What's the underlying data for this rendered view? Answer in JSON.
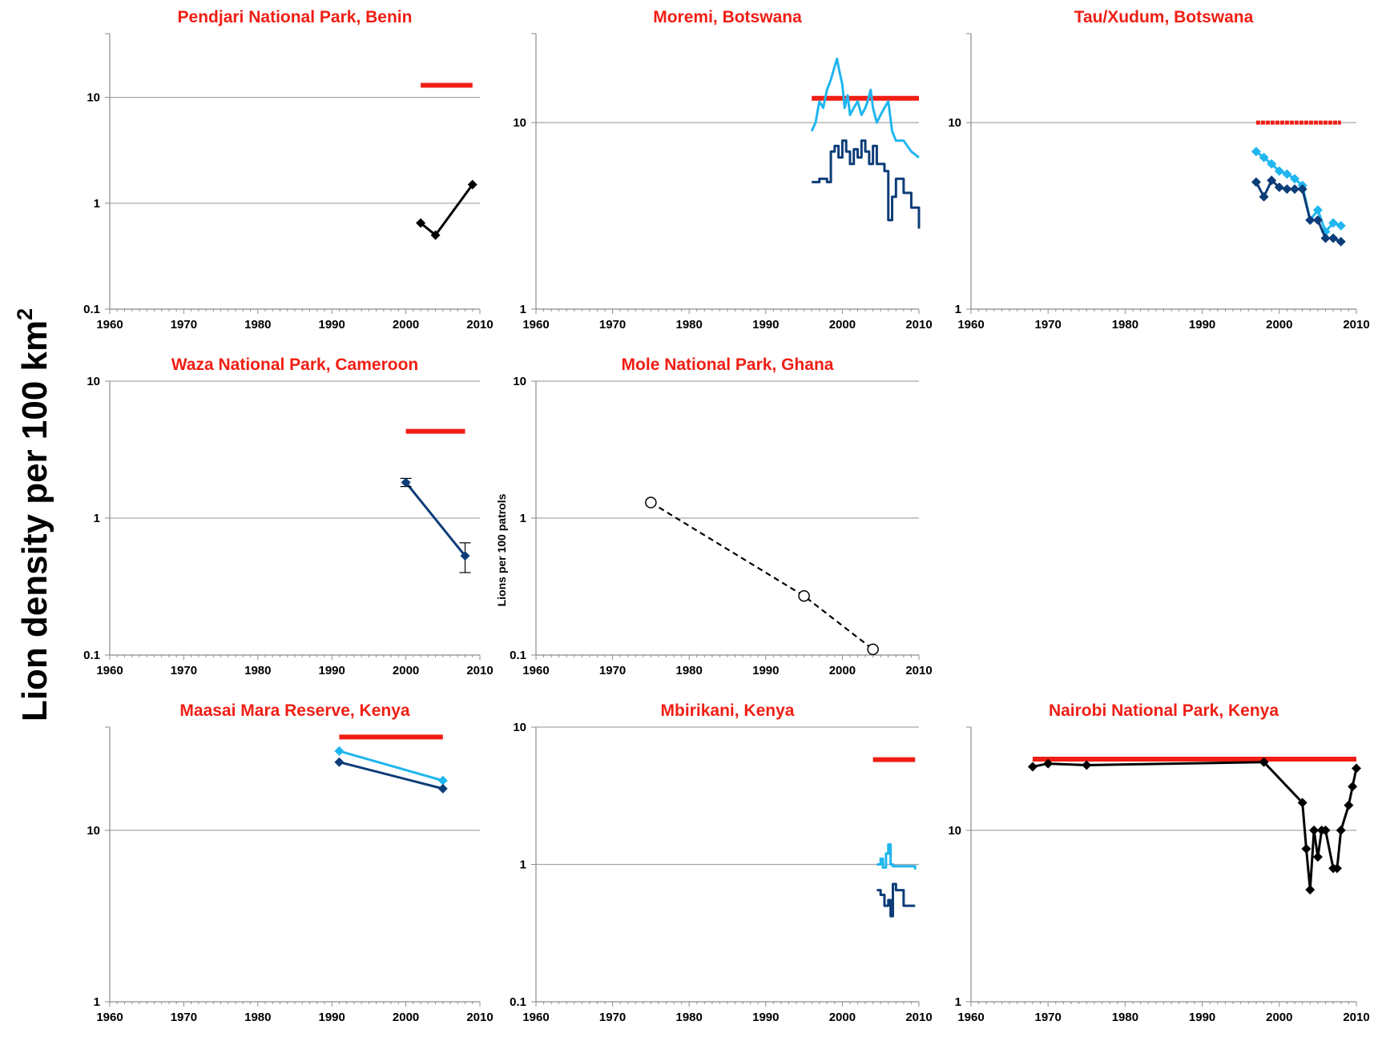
{
  "figure": {
    "ylabel": "Lion density per 100 km",
    "ylabel_superscript": "2"
  },
  "colors": {
    "title": "#f01e14",
    "reference": "#f01e14",
    "light_series": "#1fb6ef",
    "dark_series": "#0d3d78",
    "black_series": "#000000",
    "gridline": "#a6a6a6",
    "axis": "#8c8c8c"
  },
  "chart_data": [
    {
      "id": "pendjari",
      "type": "line",
      "title": "Pendjari National Park, Benin",
      "yscale": "log",
      "xlim": [
        1960,
        2010
      ],
      "ylim": [
        0.1,
        40
      ],
      "xticks": [
        1960,
        1970,
        1980,
        1990,
        2000,
        2010
      ],
      "yticks": [
        0.1,
        1,
        10
      ],
      "ytick_labels": [
        "0.1",
        "1",
        "10"
      ],
      "grid": "horizontal",
      "legend": "none",
      "series": [
        {
          "color": "reference",
          "style": "thick",
          "x": [
            2002,
            2009
          ],
          "y": [
            13,
            13
          ]
        },
        {
          "color": "black_series",
          "style": "line-diamond",
          "x": [
            2002,
            2004,
            2009
          ],
          "y": [
            0.65,
            0.5,
            1.5
          ]
        }
      ]
    },
    {
      "id": "moremi",
      "type": "line",
      "title": "Moremi, Botswana",
      "yscale": "log",
      "xlim": [
        1960,
        2010
      ],
      "ylim": [
        1,
        30
      ],
      "xticks": [
        1960,
        1970,
        1980,
        1990,
        2000,
        2010
      ],
      "yticks": [
        1,
        10
      ],
      "ytick_labels": [
        "1",
        "10"
      ],
      "grid": "horizontal",
      "legend": "none",
      "series": [
        {
          "color": "reference",
          "style": "thick",
          "x": [
            1996,
            2010
          ],
          "y": [
            13.5,
            13.5
          ]
        },
        {
          "color": "light_series",
          "style": "line",
          "x": [
            1996,
            1996.5,
            1997,
            1997.5,
            1998,
            1998.5,
            1999,
            1999.3,
            1999.6,
            2000,
            2000.3,
            2000.7,
            2001,
            2001.5,
            2002,
            2002.5,
            2003,
            2003.3,
            2003.7,
            2004,
            2004.5,
            2005,
            2005.5,
            2006,
            2006.5,
            2007,
            2008,
            2009,
            2010
          ],
          "y": [
            9,
            10,
            13,
            12,
            15,
            17,
            20,
            22,
            19,
            16,
            12,
            14,
            11,
            12,
            13,
            11,
            12,
            13,
            15,
            12,
            10,
            11,
            12,
            13,
            9,
            8,
            8,
            7,
            6.5
          ]
        },
        {
          "color": "dark_series",
          "style": "step",
          "x": [
            1996,
            1997,
            1998,
            1998.5,
            1999,
            1999.5,
            2000,
            2000.5,
            2001,
            2001.5,
            2002,
            2002.5,
            2003,
            2003.5,
            2004,
            2004.5,
            2005,
            2005.5,
            2006,
            2006.5,
            2007,
            2008,
            2009,
            2010
          ],
          "y": [
            4.8,
            5,
            4.8,
            7,
            7.5,
            6.5,
            8,
            7,
            6,
            7.2,
            6.5,
            8,
            7,
            6,
            7.5,
            6,
            6,
            5.5,
            3,
            4,
            5,
            4.2,
            3.5,
            2.7
          ]
        }
      ]
    },
    {
      "id": "tau",
      "type": "line",
      "title": "Tau/Xudum, Botswana",
      "yscale": "log",
      "xlim": [
        1960,
        2010
      ],
      "ylim": [
        1,
        30
      ],
      "xticks": [
        1960,
        1970,
        1980,
        1990,
        2000,
        2010
      ],
      "yticks": [
        1,
        10
      ],
      "ytick_labels": [
        "1",
        "10"
      ],
      "grid": "horizontal",
      "legend": "none",
      "series": [
        {
          "color": "reference",
          "style": "dotted-thick",
          "x": [
            1997,
            2008
          ],
          "y": [
            10,
            10
          ]
        },
        {
          "color": "light_series",
          "style": "line-diamond",
          "x": [
            1997,
            1998,
            1999,
            2000,
            2001,
            2002,
            2003,
            2004,
            2005,
            2006,
            2007,
            2008
          ],
          "y": [
            7,
            6.5,
            6,
            5.5,
            5.3,
            5,
            4.6,
            3,
            3.4,
            2.6,
            2.9,
            2.8
          ]
        },
        {
          "color": "dark_series",
          "style": "line-diamond",
          "x": [
            1997,
            1998,
            1999,
            2000,
            2001,
            2002,
            2003,
            2004,
            2005,
            2006,
            2007,
            2008
          ],
          "y": [
            4.8,
            4,
            4.9,
            4.5,
            4.4,
            4.4,
            4.4,
            3,
            3,
            2.4,
            2.4,
            2.3
          ]
        }
      ]
    },
    {
      "id": "waza",
      "type": "line",
      "title": "Waza National Park, Cameroon",
      "yscale": "log",
      "xlim": [
        1960,
        2010
      ],
      "ylim": [
        0.1,
        10
      ],
      "xticks": [
        1960,
        1970,
        1980,
        1990,
        2000,
        2010
      ],
      "yticks": [
        0.1,
        1,
        10
      ],
      "ytick_labels": [
        "0.1",
        "1",
        "10"
      ],
      "grid": "horizontal",
      "legend": "none",
      "series": [
        {
          "color": "reference",
          "style": "thick",
          "x": [
            2000,
            2008
          ],
          "y": [
            4.3,
            4.3
          ]
        },
        {
          "color": "dark_series",
          "style": "line-diamond-errorbar",
          "x": [
            2000,
            2008
          ],
          "y": [
            1.82,
            0.53
          ],
          "err_low": [
            1.7,
            0.4
          ],
          "err_high": [
            1.95,
            0.66
          ]
        }
      ]
    },
    {
      "id": "mole",
      "type": "line",
      "title": "Mole National Park, Ghana",
      "ylabel": "Lions per 100 patrols",
      "yscale": "log",
      "xlim": [
        1960,
        2010
      ],
      "ylim": [
        0.1,
        10
      ],
      "xticks": [
        1960,
        1970,
        1980,
        1990,
        2000,
        2010
      ],
      "yticks": [
        0.1,
        1,
        10
      ],
      "ytick_labels": [
        "0.1",
        "1",
        "10"
      ],
      "grid": "horizontal",
      "legend": "none",
      "series": [
        {
          "color": "black_series",
          "style": "dashed-circle",
          "x": [
            1975,
            1995,
            2004
          ],
          "y": [
            1.3,
            0.27,
            0.11
          ]
        }
      ]
    },
    {
      "id": "mara",
      "type": "line",
      "title": "Maasai Mara Reserve, Kenya",
      "yscale": "log",
      "xlim": [
        1960,
        2010
      ],
      "ylim": [
        1,
        40
      ],
      "xticks": [
        1960,
        1970,
        1980,
        1990,
        2000,
        2010
      ],
      "yticks": [
        1,
        10
      ],
      "ytick_labels": [
        "1",
        "10"
      ],
      "grid": "horizontal",
      "legend": "none",
      "series": [
        {
          "color": "reference",
          "style": "thick",
          "x": [
            1991,
            2005
          ],
          "y": [
            35,
            35
          ]
        },
        {
          "color": "light_series",
          "style": "line-diamond",
          "x": [
            1991,
            2005
          ],
          "y": [
            29,
            19.5
          ]
        },
        {
          "color": "dark_series",
          "style": "line-diamond",
          "x": [
            1991,
            2005
          ],
          "y": [
            25,
            17.5
          ]
        }
      ]
    },
    {
      "id": "mbirikani",
      "type": "line",
      "title": "Mbirikani, Kenya",
      "yscale": "log",
      "xlim": [
        1960,
        2010
      ],
      "ylim": [
        0.1,
        10
      ],
      "xticks": [
        1960,
        1970,
        1980,
        1990,
        2000,
        2010
      ],
      "yticks": [
        0.1,
        1,
        10
      ],
      "ytick_labels": [
        "0.1",
        "1",
        "10"
      ],
      "grid": "horizontal",
      "legend": "none",
      "series": [
        {
          "color": "reference",
          "style": "thick",
          "x": [
            2004,
            2009.5
          ],
          "y": [
            5.8,
            5.8
          ]
        },
        {
          "color": "light_series",
          "style": "step",
          "x": [
            2004.5,
            2005,
            2005.3,
            2005.7,
            2006,
            2006.3,
            2006.6,
            2007,
            2008,
            2009,
            2009.5
          ],
          "y": [
            1.0,
            1.1,
            0.95,
            1.2,
            1.4,
            1.0,
            0.97,
            0.97,
            0.97,
            0.97,
            0.92
          ]
        },
        {
          "color": "dark_series",
          "style": "step",
          "x": [
            2004.5,
            2005,
            2005.5,
            2006,
            2006.3,
            2006.6,
            2007,
            2007.5,
            2008,
            2009,
            2009.5
          ],
          "y": [
            0.65,
            0.6,
            0.5,
            0.55,
            0.42,
            0.72,
            0.65,
            0.65,
            0.5,
            0.5,
            0.5
          ]
        }
      ]
    },
    {
      "id": "nairobi",
      "type": "line",
      "title": "Nairobi National Park, Kenya",
      "yscale": "log",
      "xlim": [
        1960,
        2010
      ],
      "ylim": [
        1,
        40
      ],
      "xticks": [
        1960,
        1970,
        1980,
        1990,
        2000,
        2010
      ],
      "yticks": [
        1,
        10
      ],
      "ytick_labels": [
        "1",
        "10"
      ],
      "grid": "horizontal",
      "legend": "none",
      "series": [
        {
          "color": "reference",
          "style": "thick",
          "x": [
            1968,
            2010
          ],
          "y": [
            26,
            26
          ]
        },
        {
          "color": "black_series",
          "style": "line-diamond",
          "x": [
            1968,
            1970,
            1975,
            1998,
            2003,
            2003.5,
            2004,
            2004.5,
            2005,
            2005.5,
            2006,
            2007,
            2007.5,
            2008,
            2009,
            2009.5,
            2010
          ],
          "y": [
            23.5,
            24.5,
            24,
            25,
            14.5,
            7.8,
            4.5,
            10,
            7,
            10,
            10,
            6,
            6,
            10,
            14,
            18,
            23
          ]
        }
      ]
    }
  ]
}
